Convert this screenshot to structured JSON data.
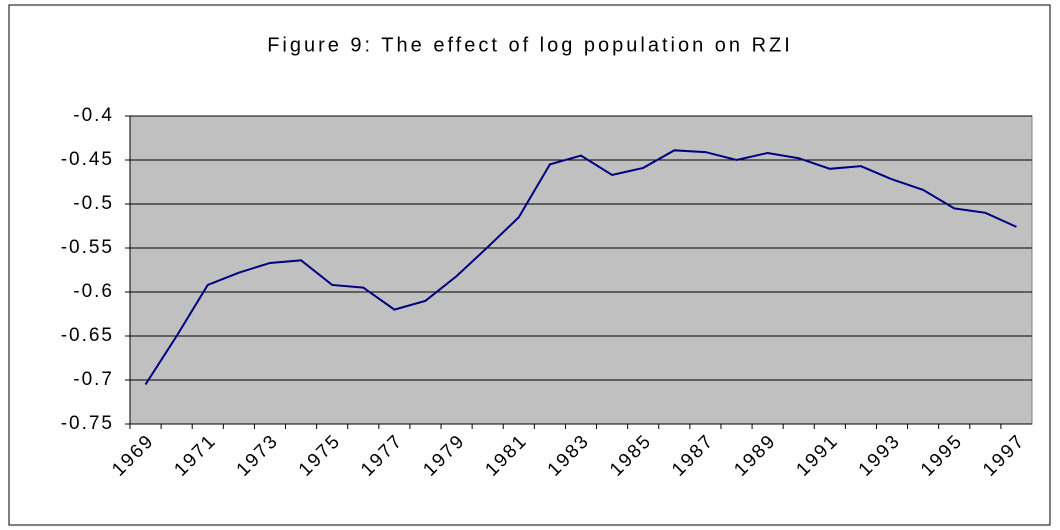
{
  "chart_data": {
    "type": "line",
    "title": "Figure 9: The effect of log population on RZI",
    "categories": [
      "1969",
      null,
      "1971",
      null,
      "1973",
      null,
      "1975",
      null,
      "1977",
      null,
      "1979",
      null,
      "1981",
      null,
      "1983",
      null,
      "1985",
      null,
      "1987",
      null,
      "1989",
      null,
      "1991",
      null,
      "1993",
      null,
      "1995",
      null,
      "1997"
    ],
    "series": [
      {
        "name": "RZI",
        "color": "#000080",
        "values": [
          -0.705,
          -0.65,
          -0.592,
          -0.578,
          -0.567,
          -0.564,
          -0.592,
          -0.595,
          -0.62,
          -0.61,
          -0.582,
          -0.549,
          -0.515,
          -0.455,
          -0.445,
          -0.467,
          -0.459,
          -0.439,
          -0.441,
          -0.45,
          -0.442,
          -0.448,
          -0.46,
          -0.457,
          -0.472,
          -0.484,
          -0.505,
          -0.51,
          -0.526
        ]
      }
    ],
    "ylim": [
      -0.75,
      -0.4
    ],
    "yticks": [
      -0.75,
      -0.7,
      -0.65,
      -0.6,
      -0.55,
      -0.5,
      -0.45,
      -0.4
    ],
    "grid": true,
    "plot_background": "#c0c0c0"
  }
}
